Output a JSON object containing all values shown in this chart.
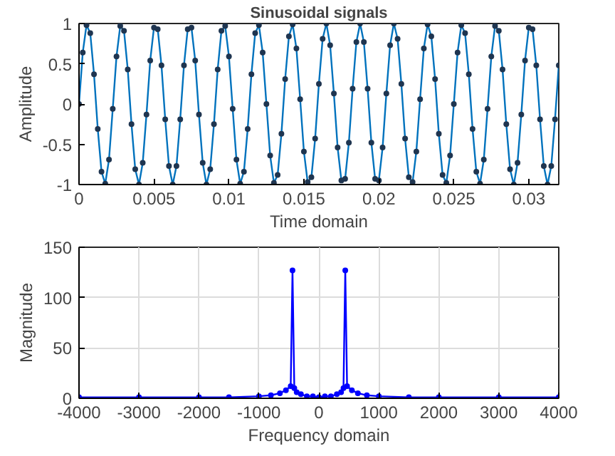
{
  "chart_data": [
    {
      "type": "line",
      "title": "Sinusoidal signals",
      "xlabel": "Time domain",
      "ylabel": "Amplitude",
      "xlim": [
        0,
        0.032
      ],
      "ylim": [
        -1,
        1
      ],
      "xticks": [
        0,
        0.005,
        0.01,
        0.015,
        0.02,
        0.025,
        0.03
      ],
      "yticks": [
        -1,
        -0.5,
        0,
        0.5,
        1
      ],
      "grid": false,
      "marker": "circle",
      "line_style": "solid",
      "series": [
        {
          "color": "#0072bd",
          "x": [
            0,
            0.00025,
            0.0005,
            0.00075,
            0.001,
            0.00125,
            0.0015,
            0.00175,
            0.002,
            0.00225,
            0.0025,
            0.00275,
            0.003,
            0.00325,
            0.0035,
            0.00375,
            0.004,
            0.00425,
            0.0045,
            0.00475,
            0.005,
            0.00525,
            0.0055,
            0.00575,
            0.006,
            0.00625,
            0.0065,
            0.00675,
            0.007,
            0.00725,
            0.0075,
            0.00775,
            0.008,
            0.00825,
            0.0085,
            0.00875,
            0.009,
            0.00925,
            0.0095,
            0.00975,
            0.01,
            0.01025,
            0.0105,
            0.01075,
            0.011,
            0.01125,
            0.0115,
            0.01175,
            0.012,
            0.01225,
            0.0125,
            0.01275,
            0.013,
            0.01325,
            0.0135,
            0.01375,
            0.014,
            0.01425,
            0.0145,
            0.01475,
            0.015,
            0.01525,
            0.0155,
            0.01575,
            0.016,
            0.01625,
            0.0165,
            0.01675,
            0.017,
            0.01725,
            0.0175,
            0.01775,
            0.018,
            0.01825,
            0.0185,
            0.01875,
            0.019,
            0.01925,
            0.0195,
            0.01975,
            0.02,
            0.02025,
            0.0205,
            0.02075,
            0.021,
            0.02125,
            0.0215,
            0.02175,
            0.022,
            0.02225,
            0.0225,
            0.02275,
            0.023,
            0.02325,
            0.0235,
            0.02375,
            0.024,
            0.02425,
            0.0245,
            0.02475,
            0.025,
            0.02525,
            0.0255,
            0.02575,
            0.026,
            0.02625,
            0.0265,
            0.02675,
            0.027,
            0.02725,
            0.0275,
            0.02775,
            0.028,
            0.02825,
            0.0285,
            0.02875,
            0.029,
            0.02925,
            0.0295,
            0.02975,
            0.03,
            0.03025,
            0.0305,
            0.03075,
            0.031,
            0.03125,
            0.0315,
            0.03175,
            0.032
          ],
          "values": [
            0,
            0.64,
            0.98,
            0.88,
            0.37,
            -0.31,
            -0.84,
            -0.99,
            -0.69,
            -0.06,
            0.59,
            0.97,
            0.91,
            0.43,
            -0.25,
            -0.81,
            -1,
            -0.73,
            -0.13,
            0.54,
            0.95,
            0.93,
            0.48,
            -0.19,
            -0.77,
            -1,
            -0.77,
            -0.19,
            0.48,
            0.93,
            0.95,
            0.54,
            -0.13,
            -0.73,
            -1,
            -0.81,
            -0.25,
            0.43,
            0.91,
            0.97,
            0.59,
            -0.06,
            -0.69,
            -0.99,
            -0.84,
            -0.31,
            0.37,
            0.88,
            0.98,
            0.64,
            0,
            -0.64,
            -0.98,
            -0.88,
            -0.37,
            0.31,
            0.84,
            0.99,
            0.69,
            0.06,
            -0.59,
            -0.97,
            -0.91,
            -0.43,
            0.25,
            0.81,
            1,
            0.73,
            0.13,
            -0.54,
            -0.95,
            -0.93,
            -0.48,
            0.19,
            0.77,
            1,
            0.77,
            0.19,
            -0.48,
            -0.93,
            -0.95,
            -0.54,
            0.13,
            0.73,
            1,
            0.81,
            0.25,
            -0.43,
            -0.91,
            -0.97,
            -0.59,
            0.06,
            0.69,
            0.99,
            0.84,
            0.31,
            -0.37,
            -0.88,
            -0.98,
            -0.64,
            0,
            0.64,
            0.98,
            0.88,
            0.37,
            -0.31,
            -0.84,
            -0.99,
            -0.69,
            -0.06,
            0.59,
            0.97,
            0.91,
            0.43,
            -0.25,
            -0.81,
            -1,
            -0.73,
            -0.13,
            0.54,
            0.95,
            0.93,
            0.48,
            -0.19,
            -0.77,
            -1,
            -0.77,
            -0.19,
            0.48
          ]
        }
      ]
    },
    {
      "type": "line",
      "xlabel": "Frequency domain",
      "ylabel": "Magnitude",
      "xlim": [
        -4000,
        4000
      ],
      "ylim": [
        0,
        150
      ],
      "xticks": [
        -4000,
        -3000,
        -2000,
        -1000,
        0,
        1000,
        2000,
        3000,
        4000
      ],
      "yticks": [
        0,
        50,
        100,
        150
      ],
      "grid": true,
      "marker": "circle",
      "line_style": "solid",
      "series": [
        {
          "color": "#0000ff",
          "x": [
            -4000,
            -3000,
            -2000,
            -1500,
            -1000,
            -800,
            -650,
            -550,
            -470,
            -440,
            -410,
            -370,
            -300,
            -200,
            -100,
            0,
            100,
            200,
            300,
            370,
            410,
            440,
            470,
            550,
            650,
            800,
            1000,
            1500,
            2000,
            3000,
            4000
          ],
          "values": [
            1,
            1,
            1,
            1,
            2,
            3,
            5,
            8,
            12,
            127,
            10,
            6,
            4,
            2,
            2,
            1,
            2,
            2,
            4,
            6,
            10,
            127,
            12,
            8,
            5,
            3,
            2,
            1,
            1,
            1,
            1
          ]
        }
      ]
    }
  ]
}
